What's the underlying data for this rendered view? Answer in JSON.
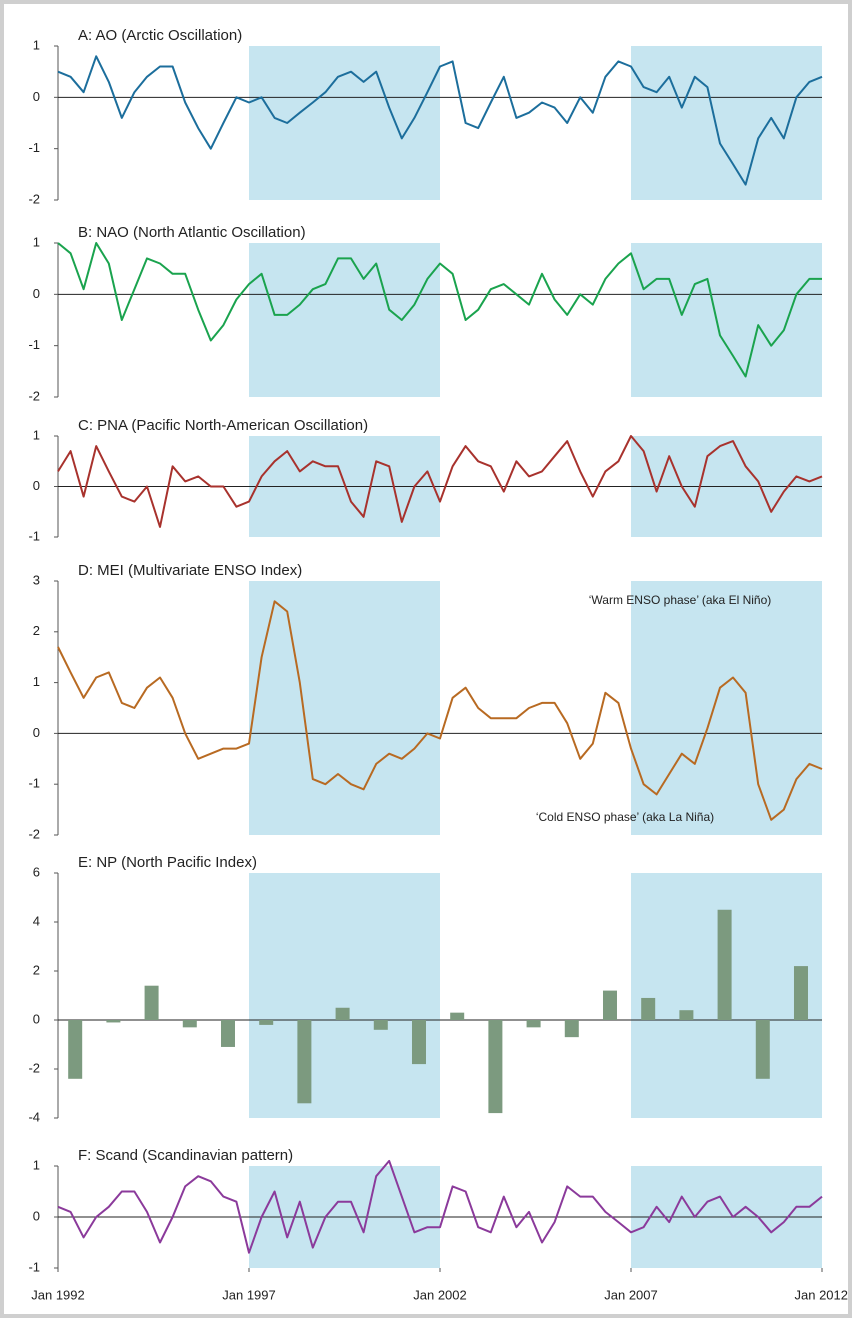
{
  "chart_data": [
    {
      "type": "line",
      "title": "A: AO (Arctic Oscillation)",
      "color": "#1c6e9c",
      "xlim": [
        1992,
        2012
      ],
      "ylim": [
        -2,
        1
      ],
      "yticks": [
        -2,
        -1,
        0,
        1
      ],
      "shade": [
        [
          1997,
          2002
        ],
        [
          2007,
          2012
        ]
      ],
      "x": [
        1992,
        1992.33,
        1992.67,
        1993,
        1993.33,
        1993.67,
        1994,
        1994.33,
        1994.67,
        1995,
        1995.33,
        1995.67,
        1996,
        1996.33,
        1996.67,
        1997,
        1997.33,
        1997.67,
        1998,
        1998.33,
        1998.67,
        1999,
        1999.33,
        1999.67,
        2000,
        2000.33,
        2000.67,
        2001,
        2001.33,
        2001.67,
        2002,
        2002.33,
        2002.67,
        2003,
        2003.33,
        2003.67,
        2004,
        2004.33,
        2004.67,
        2005,
        2005.33,
        2005.67,
        2006,
        2006.33,
        2006.67,
        2007,
        2007.33,
        2007.67,
        2008,
        2008.33,
        2008.67,
        2009,
        2009.33,
        2009.67,
        2010,
        2010.33,
        2010.67,
        2011,
        2011.33,
        2011.67,
        2012
      ],
      "values": [
        0.5,
        0.4,
        0.1,
        0.8,
        0.3,
        -0.4,
        0.1,
        0.4,
        0.6,
        0.6,
        -0.1,
        -0.6,
        -1.0,
        -0.5,
        0.0,
        -0.1,
        0.0,
        -0.4,
        -0.5,
        -0.3,
        -0.1,
        0.1,
        0.4,
        0.5,
        0.3,
        0.5,
        -0.2,
        -0.8,
        -0.4,
        0.1,
        0.6,
        0.7,
        -0.5,
        -0.6,
        -0.1,
        0.4,
        -0.4,
        -0.3,
        -0.1,
        -0.2,
        -0.5,
        0.0,
        -0.3,
        0.4,
        0.7,
        0.6,
        0.2,
        0.1,
        0.4,
        -0.2,
        0.4,
        0.2,
        -0.9,
        -1.3,
        -1.7,
        -0.8,
        -0.4,
        -0.8,
        0.0,
        0.3,
        0.4
      ]
    },
    {
      "type": "line",
      "title": "B: NAO (North Atlantic Oscillation)",
      "color": "#1aa34e",
      "xlim": [
        1992,
        2012
      ],
      "ylim": [
        -2,
        1
      ],
      "yticks": [
        -2,
        -1,
        0,
        1
      ],
      "shade": [
        [
          1997,
          2002
        ],
        [
          2007,
          2012
        ]
      ],
      "x": [
        1992,
        1992.33,
        1992.67,
        1993,
        1993.33,
        1993.67,
        1994,
        1994.33,
        1994.67,
        1995,
        1995.33,
        1995.67,
        1996,
        1996.33,
        1996.67,
        1997,
        1997.33,
        1997.67,
        1998,
        1998.33,
        1998.67,
        1999,
        1999.33,
        1999.67,
        2000,
        2000.33,
        2000.67,
        2001,
        2001.33,
        2001.67,
        2002,
        2002.33,
        2002.67,
        2003,
        2003.33,
        2003.67,
        2004,
        2004.33,
        2004.67,
        2005,
        2005.33,
        2005.67,
        2006,
        2006.33,
        2006.67,
        2007,
        2007.33,
        2007.67,
        2008,
        2008.33,
        2008.67,
        2009,
        2009.33,
        2009.67,
        2010,
        2010.33,
        2010.67,
        2011,
        2011.33,
        2011.67,
        2012
      ],
      "values": [
        1.0,
        0.8,
        0.1,
        1.0,
        0.6,
        -0.5,
        0.1,
        0.7,
        0.6,
        0.4,
        0.4,
        -0.3,
        -0.9,
        -0.6,
        -0.1,
        0.2,
        0.4,
        -0.4,
        -0.4,
        -0.2,
        0.1,
        0.2,
        0.7,
        0.7,
        0.3,
        0.6,
        -0.3,
        -0.5,
        -0.2,
        0.3,
        0.6,
        0.4,
        -0.5,
        -0.3,
        0.1,
        0.2,
        0.0,
        -0.2,
        0.4,
        -0.1,
        -0.4,
        0.0,
        -0.2,
        0.3,
        0.6,
        0.8,
        0.1,
        0.3,
        0.3,
        -0.4,
        0.2,
        0.3,
        -0.8,
        -1.2,
        -1.6,
        -0.6,
        -1.0,
        -0.7,
        0.0,
        0.3,
        0.3
      ]
    },
    {
      "type": "line",
      "title": "C: PNA (Pacific North-American Oscillation)",
      "color": "#a8322d",
      "xlim": [
        1992,
        2012
      ],
      "ylim": [
        -1,
        1
      ],
      "yticks": [
        -1,
        0,
        1
      ],
      "shade": [
        [
          1997,
          2002
        ],
        [
          2007,
          2012
        ]
      ],
      "x": [
        1992,
        1992.33,
        1992.67,
        1993,
        1993.33,
        1993.67,
        1994,
        1994.33,
        1994.67,
        1995,
        1995.33,
        1995.67,
        1996,
        1996.33,
        1996.67,
        1997,
        1997.33,
        1997.67,
        1998,
        1998.33,
        1998.67,
        1999,
        1999.33,
        1999.67,
        2000,
        2000.33,
        2000.67,
        2001,
        2001.33,
        2001.67,
        2002,
        2002.33,
        2002.67,
        2003,
        2003.33,
        2003.67,
        2004,
        2004.33,
        2004.67,
        2005,
        2005.33,
        2005.67,
        2006,
        2006.33,
        2006.67,
        2007,
        2007.33,
        2007.67,
        2008,
        2008.33,
        2008.67,
        2009,
        2009.33,
        2009.67,
        2010,
        2010.33,
        2010.67,
        2011,
        2011.33,
        2011.67,
        2012
      ],
      "values": [
        0.3,
        0.7,
        -0.2,
        0.8,
        0.3,
        -0.2,
        -0.3,
        0.0,
        -0.8,
        0.4,
        0.1,
        0.2,
        0.0,
        0.0,
        -0.4,
        -0.3,
        0.2,
        0.5,
        0.7,
        0.3,
        0.5,
        0.4,
        0.4,
        -0.3,
        -0.6,
        0.5,
        0.4,
        -0.7,
        0.0,
        0.3,
        -0.3,
        0.4,
        0.8,
        0.5,
        0.4,
        -0.1,
        0.5,
        0.2,
        0.3,
        0.6,
        0.9,
        0.3,
        -0.2,
        0.3,
        0.5,
        1.0,
        0.7,
        -0.1,
        0.6,
        0.0,
        -0.4,
        0.6,
        0.8,
        0.9,
        0.4,
        0.1,
        -0.5,
        -0.1,
        0.2,
        0.1,
        0.2
      ]
    },
    {
      "type": "line",
      "title": "D: MEI (Multivariate ENSO Index)",
      "color": "#b86a22",
      "xlim": [
        1992,
        2012
      ],
      "ylim": [
        -2,
        3
      ],
      "yticks": [
        -2,
        -1,
        0,
        1,
        2,
        3
      ],
      "shade": [
        [
          1997,
          2002
        ],
        [
          2007,
          2012
        ]
      ],
      "annotations": [
        "‘Warm ENSO phase’ (aka El Niño)",
        "‘Cold ENSO phase’ (aka La Niña)"
      ],
      "x": [
        1992,
        1992.33,
        1992.67,
        1993,
        1993.33,
        1993.67,
        1994,
        1994.33,
        1994.67,
        1995,
        1995.33,
        1995.67,
        1996,
        1996.33,
        1996.67,
        1997,
        1997.33,
        1997.67,
        1998,
        1998.33,
        1998.67,
        1999,
        1999.33,
        1999.67,
        2000,
        2000.33,
        2000.67,
        2001,
        2001.33,
        2001.67,
        2002,
        2002.33,
        2002.67,
        2003,
        2003.33,
        2003.67,
        2004,
        2004.33,
        2004.67,
        2005,
        2005.33,
        2005.67,
        2006,
        2006.33,
        2006.67,
        2007,
        2007.33,
        2007.67,
        2008,
        2008.33,
        2008.67,
        2009,
        2009.33,
        2009.67,
        2010,
        2010.33,
        2010.67,
        2011,
        2011.33,
        2011.67,
        2012
      ],
      "values": [
        1.7,
        1.2,
        0.7,
        1.1,
        1.2,
        0.6,
        0.5,
        0.9,
        1.1,
        0.7,
        0.0,
        -0.5,
        -0.4,
        -0.3,
        -0.3,
        -0.2,
        1.5,
        2.6,
        2.4,
        1.0,
        -0.9,
        -1.0,
        -0.8,
        -1.0,
        -1.1,
        -0.6,
        -0.4,
        -0.5,
        -0.3,
        0.0,
        -0.1,
        0.7,
        0.9,
        0.5,
        0.3,
        0.3,
        0.3,
        0.5,
        0.6,
        0.6,
        0.2,
        -0.5,
        -0.2,
        0.8,
        0.6,
        -0.3,
        -1.0,
        -1.2,
        -0.8,
        -0.4,
        -0.6,
        0.1,
        0.9,
        1.1,
        0.8,
        -1.0,
        -1.7,
        -1.5,
        -0.9,
        -0.6,
        -0.7
      ]
    },
    {
      "type": "bar",
      "title": "E: NP (North Pacific Index)",
      "color": "#7c9a7f",
      "xlim": [
        1992,
        2012
      ],
      "ylim": [
        -4,
        6
      ],
      "yticks": [
        -4,
        -2,
        0,
        2,
        4,
        6
      ],
      "shade": [
        [
          1997,
          2002
        ],
        [
          2007,
          2012
        ]
      ],
      "x": [
        1992.45,
        1993.45,
        1994.45,
        1995.45,
        1996.45,
        1997.45,
        1998.45,
        1999.45,
        2000.45,
        2001.45,
        2002.45,
        2003.45,
        2004.45,
        2005.45,
        2006.45,
        2007.45,
        2008.45,
        2009.45,
        2010.45,
        2011.45
      ],
      "values": [
        -2.4,
        -0.1,
        1.4,
        -0.3,
        -1.1,
        -0.2,
        -3.4,
        0.5,
        -0.4,
        -1.8,
        0.3,
        -3.8,
        -0.3,
        -0.7,
        1.2,
        0.9,
        0.4,
        4.5,
        -2.4,
        2.2
      ]
    },
    {
      "type": "line",
      "title": "F: Scand (Scandinavian pattern)",
      "color": "#8b3a9b",
      "xlim": [
        1992,
        2012
      ],
      "ylim": [
        -1,
        1
      ],
      "yticks": [
        -1,
        0,
        1
      ],
      "shade": [
        [
          1997,
          2002
        ],
        [
          2007,
          2012
        ]
      ],
      "xticks": [
        {
          "value": 1992,
          "label": "Jan 1992"
        },
        {
          "value": 1997,
          "label": "Jan 1997"
        },
        {
          "value": 2002,
          "label": "Jan 2002"
        },
        {
          "value": 2007,
          "label": "Jan 2007"
        },
        {
          "value": 2012,
          "label": "Jan 2012"
        }
      ],
      "x": [
        1992,
        1992.33,
        1992.67,
        1993,
        1993.33,
        1993.67,
        1994,
        1994.33,
        1994.67,
        1995,
        1995.33,
        1995.67,
        1996,
        1996.33,
        1996.67,
        1997,
        1997.33,
        1997.67,
        1998,
        1998.33,
        1998.67,
        1999,
        1999.33,
        1999.67,
        2000,
        2000.33,
        2000.67,
        2001,
        2001.33,
        2001.67,
        2002,
        2002.33,
        2002.67,
        2003,
        2003.33,
        2003.67,
        2004,
        2004.33,
        2004.67,
        2005,
        2005.33,
        2005.67,
        2006,
        2006.33,
        2006.67,
        2007,
        2007.33,
        2007.67,
        2008,
        2008.33,
        2008.67,
        2009,
        2009.33,
        2009.67,
        2010,
        2010.33,
        2010.67,
        2011,
        2011.33,
        2011.67,
        2012
      ],
      "values": [
        0.2,
        0.1,
        -0.4,
        0.0,
        0.2,
        0.5,
        0.5,
        0.1,
        -0.5,
        0.0,
        0.6,
        0.8,
        0.7,
        0.4,
        0.3,
        -0.7,
        0.0,
        0.5,
        -0.4,
        0.3,
        -0.6,
        0.0,
        0.3,
        0.3,
        -0.3,
        0.8,
        1.1,
        0.4,
        -0.3,
        -0.2,
        -0.2,
        0.6,
        0.5,
        -0.2,
        -0.3,
        0.4,
        -0.2,
        0.1,
        -0.5,
        -0.1,
        0.6,
        0.4,
        0.4,
        0.1,
        -0.1,
        -0.3,
        -0.2,
        0.2,
        -0.1,
        0.4,
        0.0,
        0.3,
        0.4,
        0.0,
        0.2,
        0.0,
        -0.3,
        -0.1,
        0.2,
        0.2,
        0.4
      ]
    }
  ]
}
